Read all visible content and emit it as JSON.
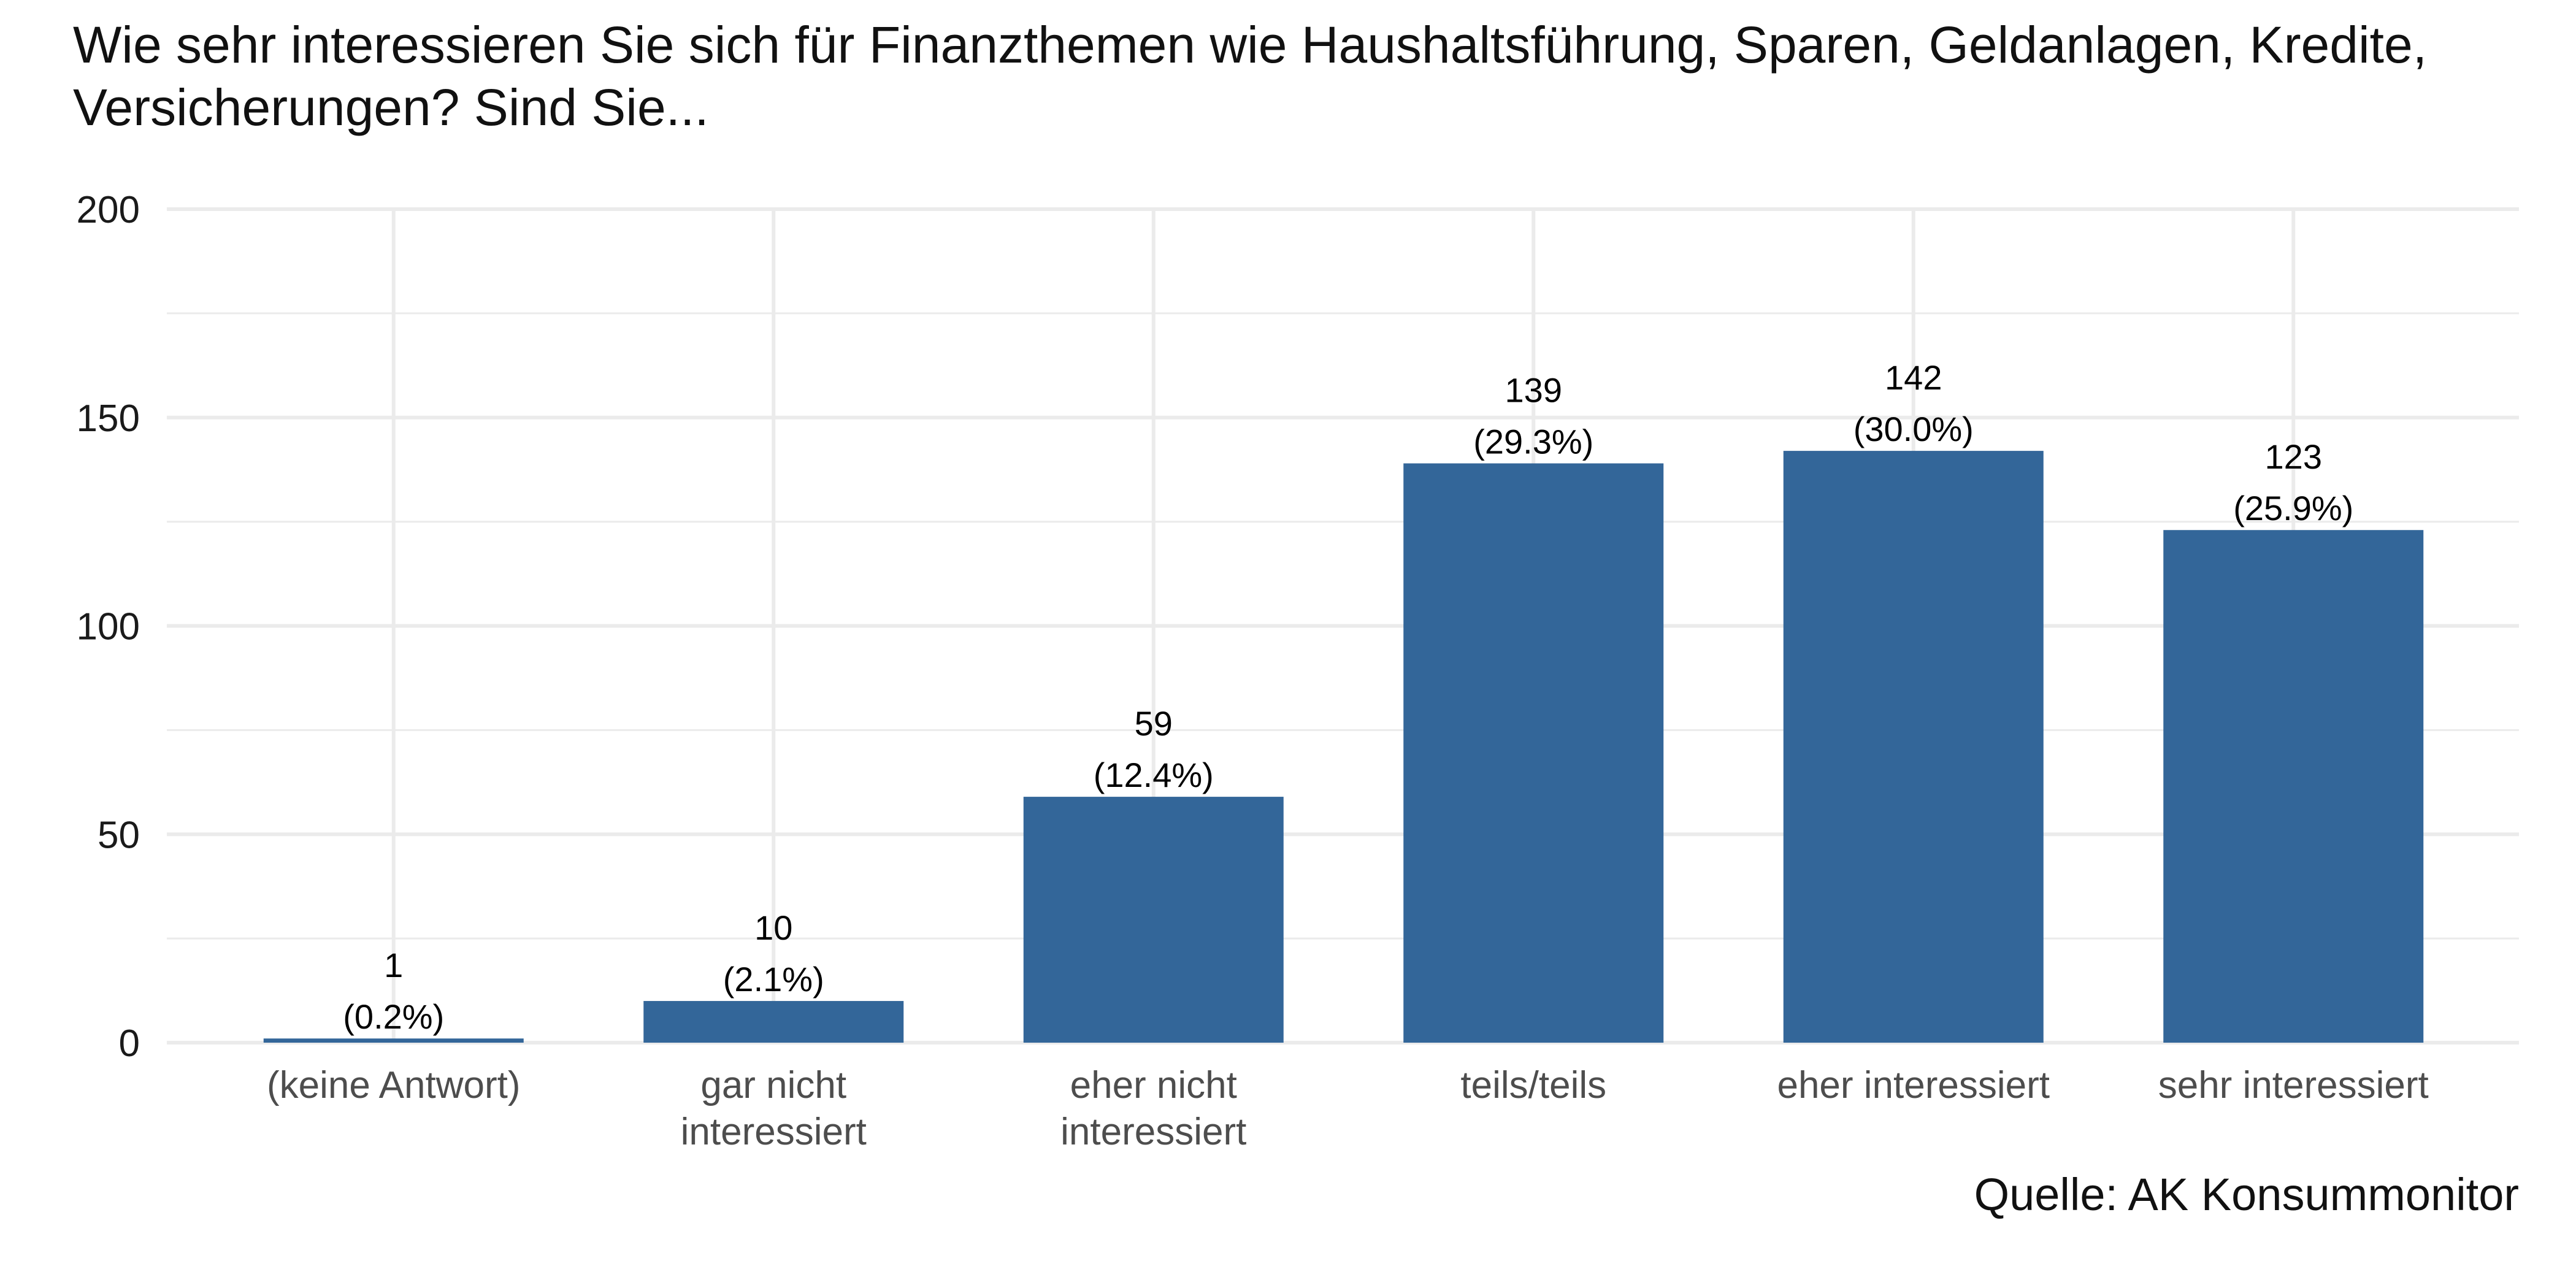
{
  "chart_data": {
    "type": "bar",
    "title": "Wie sehr interessieren Sie sich für Finanzthemen wie Haushaltsführung, Sparen, Geldanlagen, Kredite, Versicherungen? Sind Sie...",
    "source": "Quelle: AK Konsummonitor",
    "categories": [
      [
        "(keine Antwort)"
      ],
      [
        "gar nicht",
        "interessiert"
      ],
      [
        "eher nicht",
        "interessiert"
      ],
      [
        "teils/teils"
      ],
      [
        "eher interessiert"
      ],
      [
        "sehr interessiert"
      ]
    ],
    "values": [
      1,
      10,
      59,
      139,
      142,
      123
    ],
    "value_labels": [
      "1",
      "10",
      "59",
      "139",
      "142",
      "123"
    ],
    "percent_labels": [
      "(0.2%)",
      "(2.1%)",
      "(12.4%)",
      "(29.3%)",
      "(30.0%)",
      "(25.9%)"
    ],
    "ylim": [
      0,
      200
    ],
    "yticks": [
      0,
      50,
      100,
      150,
      200
    ],
    "xlabel": "",
    "ylabel": "",
    "grid": true,
    "bar_color": "#336699",
    "grid_color": "#ebebeb"
  }
}
